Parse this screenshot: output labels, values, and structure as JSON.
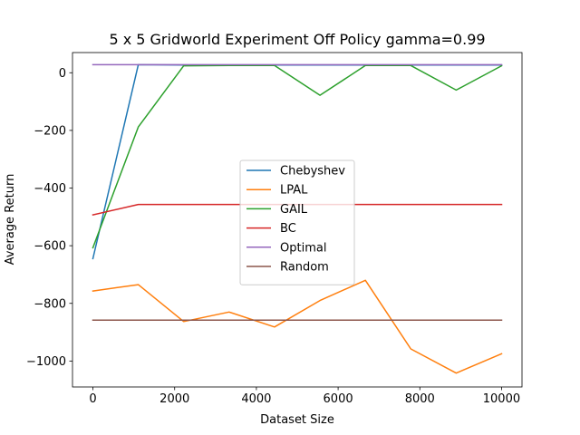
{
  "chart_data": {
    "type": "line",
    "title": "5 x 5 Gridworld Experiment Off Policy gamma=0.99",
    "xlabel": "Dataset Size",
    "ylabel": "Average Return",
    "xlim": [
      -500,
      10500
    ],
    "ylim": [
      -1090,
      70
    ],
    "xticks": [
      0,
      2000,
      4000,
      6000,
      8000,
      10000
    ],
    "xtick_labels": [
      "0",
      "2000",
      "4000",
      "6000",
      "8000",
      "10000"
    ],
    "yticks": [
      0,
      -200,
      -400,
      -600,
      -800,
      -1000
    ],
    "ytick_labels": [
      "0",
      "−200",
      "−400",
      "−600",
      "−800",
      "−1000"
    ],
    "grid": false,
    "legend_position": "center",
    "x": [
      0,
      1111,
      2222,
      3333,
      4444,
      5556,
      6667,
      7778,
      8889,
      10000
    ],
    "series": [
      {
        "name": "Chebyshev",
        "color": "#1f77b4",
        "values": [
          -645,
          28,
          27,
          27,
          27,
          27,
          27,
          27,
          27,
          27
        ]
      },
      {
        "name": "LPAL",
        "color": "#ff7f0e",
        "values": [
          -757,
          -735,
          -863,
          -830,
          -882,
          -790,
          -720,
          -958,
          -1042,
          -975
        ]
      },
      {
        "name": "GAIL",
        "color": "#2ca02c",
        "values": [
          -607,
          -188,
          24,
          25,
          25,
          -78,
          25,
          25,
          -60,
          24
        ]
      },
      {
        "name": "BC",
        "color": "#d62728",
        "values": [
          -493,
          -457,
          -457,
          -457,
          -457,
          -457,
          -457,
          -457,
          -457,
          -457
        ]
      },
      {
        "name": "Optimal",
        "color": "#9467bd",
        "values": [
          28,
          28,
          28,
          28,
          28,
          28,
          28,
          28,
          28,
          28
        ]
      },
      {
        "name": "Random",
        "color": "#8c564b",
        "values": [
          -858,
          -858,
          -858,
          -858,
          -858,
          -858,
          -858,
          -858,
          -858,
          -858
        ]
      }
    ]
  }
}
